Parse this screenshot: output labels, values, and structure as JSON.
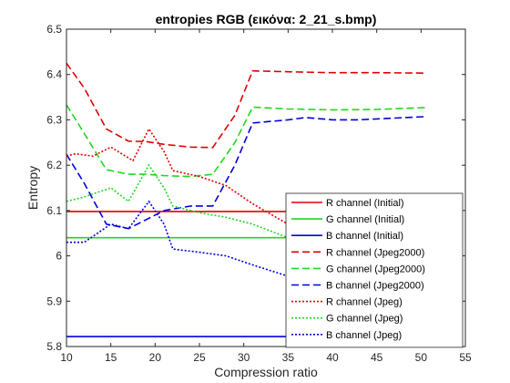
{
  "chart_data": {
    "type": "line",
    "title": "entropies RGB (εικόνα: 2_21_s.bmp)",
    "xlabel": "Compression ratio",
    "ylabel": "Entropy",
    "xlim": [
      10,
      55
    ],
    "ylim": [
      5.8,
      6.5
    ],
    "xticks": [
      10,
      15,
      20,
      25,
      30,
      35,
      40,
      45,
      50,
      55
    ],
    "yticks": [
      5.8,
      5.9,
      6,
      6.1,
      6.2,
      6.3,
      6.4,
      6.5
    ],
    "xtick_labels": [
      "10",
      "15",
      "20",
      "25",
      "30",
      "35",
      "40",
      "45",
      "50",
      "55"
    ],
    "ytick_labels": [
      "5.8",
      "5.9",
      "6",
      "6.1",
      "6.2",
      "6.3",
      "6.4",
      "6.5"
    ],
    "grid": false,
    "legend_position": "bottom-right",
    "series": [
      {
        "name": "R channel (Initial)",
        "color": "#e00000",
        "style": "solid",
        "x": [
          10,
          50
        ],
        "y": [
          6.098,
          6.098
        ]
      },
      {
        "name": "G channel (Initial)",
        "color": "#1ed81e",
        "style": "solid",
        "x": [
          10,
          50
        ],
        "y": [
          6.04,
          6.04
        ]
      },
      {
        "name": "B channel (Initial)",
        "color": "#0000e0",
        "style": "solid",
        "x": [
          10,
          50
        ],
        "y": [
          5.822,
          5.822
        ]
      },
      {
        "name": "R channel (Jpeg2000)",
        "color": "#e00000",
        "style": "dashed",
        "x": [
          10,
          12,
          14.5,
          17,
          19,
          21,
          24,
          26.5,
          29,
          31,
          35,
          40,
          45,
          50.5
        ],
        "y": [
          6.425,
          6.37,
          6.28,
          6.253,
          6.252,
          6.246,
          6.24,
          6.239,
          6.31,
          6.408,
          6.406,
          6.404,
          6.404,
          6.403
        ]
      },
      {
        "name": "G channel (Jpeg2000)",
        "color": "#1ed81e",
        "style": "dashed",
        "x": [
          10,
          12,
          14.5,
          17,
          19,
          21,
          24,
          26.5,
          29,
          31,
          35,
          40,
          45,
          50.5
        ],
        "y": [
          6.333,
          6.27,
          6.19,
          6.18,
          6.18,
          6.177,
          6.175,
          6.18,
          6.25,
          6.328,
          6.324,
          6.322,
          6.323,
          6.327
        ]
      },
      {
        "name": "B channel (Jpeg2000)",
        "color": "#0000e0",
        "style": "dashed",
        "x": [
          10,
          12,
          14.5,
          17,
          19,
          21,
          24,
          26.5,
          29,
          31,
          35,
          37,
          40,
          43,
          45,
          50.5
        ],
        "y": [
          6.224,
          6.16,
          6.07,
          6.06,
          6.08,
          6.1,
          6.11,
          6.11,
          6.2,
          6.293,
          6.3,
          6.305,
          6.3,
          6.3,
          6.302,
          6.307
        ]
      },
      {
        "name": "R channel (Jpeg)",
        "color": "#e00000",
        "style": "dotted",
        "x": [
          10,
          11,
          13,
          15,
          17.5,
          19.3,
          21,
          22,
          25,
          28,
          31,
          35
        ],
        "y": [
          6.22,
          6.225,
          6.22,
          6.24,
          6.21,
          6.28,
          6.23,
          6.188,
          6.175,
          6.155,
          6.115,
          6.07
        ]
      },
      {
        "name": "G channel (Jpeg)",
        "color": "#1ed81e",
        "style": "dotted",
        "x": [
          10,
          12,
          15,
          17,
          19.3,
          21,
          22,
          25,
          28,
          31,
          35
        ],
        "y": [
          6.12,
          6.13,
          6.15,
          6.12,
          6.2,
          6.15,
          6.11,
          6.095,
          6.085,
          6.07,
          6.04
        ]
      },
      {
        "name": "B channel (Jpeg)",
        "color": "#0000e0",
        "style": "dotted",
        "x": [
          10,
          12,
          15,
          17,
          19.3,
          21,
          22,
          25,
          28,
          31,
          35
        ],
        "y": [
          6.03,
          6.03,
          6.07,
          6.06,
          6.12,
          6.07,
          6.015,
          6.008,
          6.0,
          5.98,
          5.955
        ]
      }
    ]
  }
}
